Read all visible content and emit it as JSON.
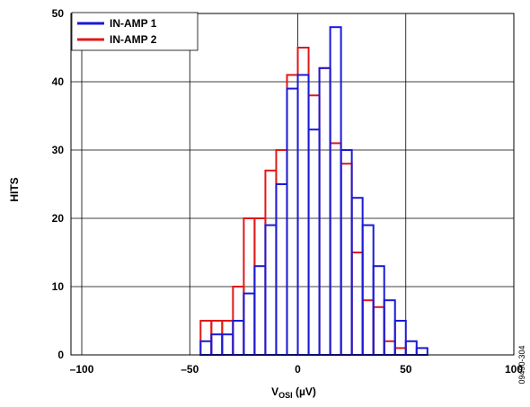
{
  "chart_data": {
    "type": "histogram",
    "title": "",
    "xlabel": "V",
    "xlabel_sub": "OSI",
    "xlabel_unit": " (µV)",
    "ylabel": "HITS",
    "xlim": [
      -105,
      100
    ],
    "ylim": [
      0,
      50
    ],
    "xticks": [
      -100,
      -50,
      0,
      50,
      100
    ],
    "xtick_labels": [
      "–100",
      "–50",
      "0",
      "50",
      "100"
    ],
    "yticks": [
      0,
      10,
      20,
      30,
      40,
      50
    ],
    "ytick_labels": [
      "0",
      "10",
      "20",
      "30",
      "40",
      "50"
    ],
    "grid": true,
    "legend_position": "top-left",
    "bin_width": 5,
    "series": [
      {
        "name": "IN-AMP 1",
        "color": "#1a1ad6",
        "bins": [
          {
            "x0": -45,
            "count": 2
          },
          {
            "x0": -40,
            "count": 3
          },
          {
            "x0": -35,
            "count": 3
          },
          {
            "x0": -30,
            "count": 5
          },
          {
            "x0": -25,
            "count": 9
          },
          {
            "x0": -20,
            "count": 13
          },
          {
            "x0": -15,
            "count": 19
          },
          {
            "x0": -10,
            "count": 25
          },
          {
            "x0": -5,
            "count": 39
          },
          {
            "x0": 0,
            "count": 41
          },
          {
            "x0": 5,
            "count": 33
          },
          {
            "x0": 10,
            "count": 42
          },
          {
            "x0": 15,
            "count": 48
          },
          {
            "x0": 20,
            "count": 30
          },
          {
            "x0": 25,
            "count": 23
          },
          {
            "x0": 30,
            "count": 19
          },
          {
            "x0": 35,
            "count": 13
          },
          {
            "x0": 40,
            "count": 8
          },
          {
            "x0": 45,
            "count": 5
          },
          {
            "x0": 50,
            "count": 2
          },
          {
            "x0": 55,
            "count": 1
          }
        ]
      },
      {
        "name": "IN-AMP 2",
        "color": "#e01818",
        "bins": [
          {
            "x0": -45,
            "count": 5
          },
          {
            "x0": -40,
            "count": 5
          },
          {
            "x0": -35,
            "count": 5
          },
          {
            "x0": -30,
            "count": 10
          },
          {
            "x0": -25,
            "count": 20
          },
          {
            "x0": -20,
            "count": 20
          },
          {
            "x0": -15,
            "count": 27
          },
          {
            "x0": -10,
            "count": 30
          },
          {
            "x0": -5,
            "count": 41
          },
          {
            "x0": 0,
            "count": 45
          },
          {
            "x0": 5,
            "count": 38
          },
          {
            "x0": 10,
            "count": 42
          },
          {
            "x0": 15,
            "count": 31
          },
          {
            "x0": 20,
            "count": 28
          },
          {
            "x0": 25,
            "count": 15
          },
          {
            "x0": 30,
            "count": 8
          },
          {
            "x0": 35,
            "count": 7
          },
          {
            "x0": 40,
            "count": 2
          },
          {
            "x0": 45,
            "count": 1
          }
        ]
      }
    ]
  },
  "figure_code": "09490-304"
}
